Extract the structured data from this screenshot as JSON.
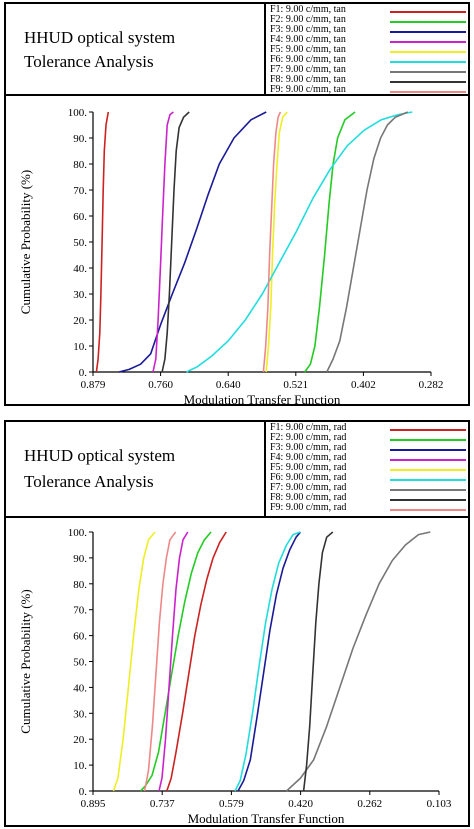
{
  "chart_data": [
    {
      "type": "line",
      "title": "HHUD optical system",
      "subtitle": "Tolerance Analysis",
      "xlabel": "Modulation Transfer Function",
      "ylabel": "Cumulative Probability (%)",
      "x_reversed": true,
      "xlim": [
        0.879,
        0.282
      ],
      "ylim": [
        0,
        100
      ],
      "x_ticks": [
        "0.879",
        "0.760",
        "0.640",
        "0.521",
        "0.402",
        "0.282"
      ],
      "y_ticks": [
        "0.",
        "10.",
        "20.",
        "30.",
        "40.",
        "50.",
        "60.",
        "70.",
        "80.",
        "90.",
        "100."
      ],
      "grid": false,
      "legend_position": "top-right",
      "series": [
        {
          "name": "F1: 9.00 c/mm, tan",
          "color": "#cc2222",
          "points": [
            [
              0.873,
              0
            ],
            [
              0.87,
              5
            ],
            [
              0.867,
              15
            ],
            [
              0.865,
              30
            ],
            [
              0.863,
              50
            ],
            [
              0.861,
              70
            ],
            [
              0.859,
              85
            ],
            [
              0.856,
              95
            ],
            [
              0.852,
              100
            ]
          ]
        },
        {
          "name": "F2: 9.00 c/mm, tan",
          "color": "#22cc22",
          "points": [
            [
              0.505,
              0
            ],
            [
              0.495,
              3
            ],
            [
              0.487,
              10
            ],
            [
              0.479,
              25
            ],
            [
              0.47,
              45
            ],
            [
              0.462,
              65
            ],
            [
              0.455,
              80
            ],
            [
              0.447,
              90
            ],
            [
              0.434,
              97
            ],
            [
              0.416,
              100
            ]
          ]
        },
        {
          "name": "F3: 9.00 c/mm, tan",
          "color": "#1a1a99",
          "points": [
            [
              0.833,
              0
            ],
            [
              0.815,
              1
            ],
            [
              0.795,
              3
            ],
            [
              0.777,
              7
            ],
            [
              0.76,
              18
            ],
            [
              0.739,
              30
            ],
            [
              0.717,
              42
            ],
            [
              0.696,
              55
            ],
            [
              0.676,
              68
            ],
            [
              0.656,
              80
            ],
            [
              0.63,
              90
            ],
            [
              0.6,
              97
            ],
            [
              0.573,
              100
            ]
          ]
        },
        {
          "name": "F4: 9.00 c/mm, tan",
          "color": "#cc22cc",
          "points": [
            [
              0.773,
              0
            ],
            [
              0.768,
              5
            ],
            [
              0.764,
              20
            ],
            [
              0.76,
              40
            ],
            [
              0.756,
              60
            ],
            [
              0.752,
              80
            ],
            [
              0.748,
              95
            ],
            [
              0.743,
              99
            ],
            [
              0.737,
              100
            ]
          ]
        },
        {
          "name": "F5: 9.00 c/mm, tan",
          "color": "#eeee22",
          "points": [
            [
              0.573,
              0
            ],
            [
              0.569,
              10
            ],
            [
              0.565,
              25
            ],
            [
              0.562,
              45
            ],
            [
              0.558,
              65
            ],
            [
              0.554,
              80
            ],
            [
              0.55,
              92
            ],
            [
              0.544,
              98
            ],
            [
              0.536,
              100
            ]
          ]
        },
        {
          "name": "F6: 9.00 c/mm, tan",
          "color": "#22dddd",
          "points": [
            [
              0.714,
              0
            ],
            [
              0.695,
              2
            ],
            [
              0.67,
              6
            ],
            [
              0.64,
              12
            ],
            [
              0.61,
              20
            ],
            [
              0.58,
              30
            ],
            [
              0.55,
              42
            ],
            [
              0.52,
              54
            ],
            [
              0.49,
              67
            ],
            [
              0.46,
              78
            ],
            [
              0.43,
              87
            ],
            [
              0.4,
              93
            ],
            [
              0.37,
              97
            ],
            [
              0.34,
              99
            ],
            [
              0.315,
              100
            ]
          ]
        },
        {
          "name": "F7: 9.00 c/mm, tan",
          "color": "#777777",
          "points": [
            [
              0.466,
              0
            ],
            [
              0.455,
              5
            ],
            [
              0.443,
              12
            ],
            [
              0.431,
              25
            ],
            [
              0.419,
              40
            ],
            [
              0.407,
              55
            ],
            [
              0.395,
              70
            ],
            [
              0.383,
              82
            ],
            [
              0.371,
              90
            ],
            [
              0.359,
              95
            ],
            [
              0.345,
              98
            ],
            [
              0.323,
              100
            ]
          ]
        },
        {
          "name": "F8: 9.00 c/mm, tan",
          "color": "#333333",
          "points": [
            [
              0.757,
              0
            ],
            [
              0.752,
              5
            ],
            [
              0.748,
              15
            ],
            [
              0.744,
              30
            ],
            [
              0.74,
              50
            ],
            [
              0.736,
              70
            ],
            [
              0.732,
              85
            ],
            [
              0.727,
              94
            ],
            [
              0.719,
              98
            ],
            [
              0.709,
              100
            ]
          ]
        },
        {
          "name": "F9: 9.00 c/mm, tan",
          "color": "#ee8888",
          "points": [
            [
              0.578,
              0
            ],
            [
              0.574,
              10
            ],
            [
              0.57,
              25
            ],
            [
              0.567,
              45
            ],
            [
              0.563,
              65
            ],
            [
              0.56,
              80
            ],
            [
              0.556,
              92
            ],
            [
              0.552,
              98
            ],
            [
              0.548,
              100
            ]
          ]
        }
      ]
    },
    {
      "type": "line",
      "title": "HHUD optical system",
      "subtitle": "Tolerance Analysis",
      "xlabel": "Modulation Transfer Function",
      "ylabel": "Cumulative Probability (%)",
      "x_reversed": true,
      "xlim": [
        0.895,
        0.103
      ],
      "ylim": [
        0,
        100
      ],
      "x_ticks": [
        "0.895",
        "0.737",
        "0.579",
        "0.420",
        "0.262",
        "0.103"
      ],
      "y_ticks": [
        "0.",
        "10.",
        "20.",
        "30.",
        "40.",
        "50.",
        "60.",
        "70.",
        "80.",
        "90.",
        "100."
      ],
      "grid": false,
      "legend_position": "top-right",
      "series": [
        {
          "name": "F1: 9.00 c/mm, rad",
          "color": "#cc2222",
          "points": [
            [
              0.726,
              0
            ],
            [
              0.716,
              5
            ],
            [
              0.705,
              15
            ],
            [
              0.69,
              30
            ],
            [
              0.676,
              45
            ],
            [
              0.662,
              60
            ],
            [
              0.648,
              72
            ],
            [
              0.634,
              82
            ],
            [
              0.62,
              90
            ],
            [
              0.605,
              96
            ],
            [
              0.59,
              100
            ]
          ]
        },
        {
          "name": "F2: 9.00 c/mm, rad",
          "color": "#22cc22",
          "points": [
            [
              0.786,
              0
            ],
            [
              0.775,
              2
            ],
            [
              0.76,
              6
            ],
            [
              0.745,
              15
            ],
            [
              0.73,
              30
            ],
            [
              0.715,
              45
            ],
            [
              0.7,
              60
            ],
            [
              0.685,
              73
            ],
            [
              0.67,
              84
            ],
            [
              0.655,
              92
            ],
            [
              0.64,
              97
            ],
            [
              0.625,
              100
            ]
          ]
        },
        {
          "name": "F3: 9.00 c/mm, rad",
          "color": "#1a1a99",
          "points": [
            [
              0.563,
              0
            ],
            [
              0.55,
              4
            ],
            [
              0.535,
              12
            ],
            [
              0.52,
              28
            ],
            [
              0.505,
              45
            ],
            [
              0.49,
              62
            ],
            [
              0.475,
              76
            ],
            [
              0.46,
              86
            ],
            [
              0.445,
              93
            ],
            [
              0.43,
              98
            ],
            [
              0.42,
              100
            ]
          ]
        },
        {
          "name": "F4: 9.00 c/mm, rad",
          "color": "#cc22cc",
          "points": [
            [
              0.744,
              0
            ],
            [
              0.737,
              5
            ],
            [
              0.729,
              20
            ],
            [
              0.721,
              40
            ],
            [
              0.713,
              60
            ],
            [
              0.705,
              78
            ],
            [
              0.697,
              90
            ],
            [
              0.689,
              97
            ],
            [
              0.678,
              100
            ]
          ]
        },
        {
          "name": "F5: 9.00 c/mm, rad",
          "color": "#eeee22",
          "points": [
            [
              0.848,
              0
            ],
            [
              0.838,
              5
            ],
            [
              0.826,
              20
            ],
            [
              0.814,
              40
            ],
            [
              0.802,
              60
            ],
            [
              0.79,
              78
            ],
            [
              0.779,
              90
            ],
            [
              0.768,
              97
            ],
            [
              0.753,
              100
            ]
          ]
        },
        {
          "name": "F6: 9.00 c/mm, rad",
          "color": "#22dddd",
          "points": [
            [
              0.57,
              0
            ],
            [
              0.558,
              4
            ],
            [
              0.545,
              14
            ],
            [
              0.53,
              30
            ],
            [
              0.515,
              48
            ],
            [
              0.5,
              65
            ],
            [
              0.485,
              78
            ],
            [
              0.47,
              88
            ],
            [
              0.452,
              95
            ],
            [
              0.437,
              99
            ],
            [
              0.42,
              100
            ]
          ]
        },
        {
          "name": "F7: 9.00 c/mm, rad",
          "color": "#777777",
          "points": [
            [
              0.452,
              0
            ],
            [
              0.42,
              5
            ],
            [
              0.39,
              12
            ],
            [
              0.36,
              25
            ],
            [
              0.33,
              40
            ],
            [
              0.3,
              55
            ],
            [
              0.27,
              68
            ],
            [
              0.24,
              80
            ],
            [
              0.21,
              89
            ],
            [
              0.18,
              95
            ],
            [
              0.15,
              99
            ],
            [
              0.123,
              100
            ]
          ]
        },
        {
          "name": "F8: 9.00 c/mm, rad",
          "color": "#333333",
          "points": [
            [
              0.413,
              0
            ],
            [
              0.406,
              10
            ],
            [
              0.399,
              25
            ],
            [
              0.392,
              45
            ],
            [
              0.385,
              65
            ],
            [
              0.378,
              80
            ],
            [
              0.37,
              92
            ],
            [
              0.36,
              98
            ],
            [
              0.346,
              100
            ]
          ]
        },
        {
          "name": "F9: 9.00 c/mm, rad",
          "color": "#ee8888",
          "points": [
            [
              0.777,
              0
            ],
            [
              0.768,
              8
            ],
            [
              0.759,
              25
            ],
            [
              0.751,
              45
            ],
            [
              0.743,
              65
            ],
            [
              0.735,
              80
            ],
            [
              0.727,
              90
            ],
            [
              0.719,
              97
            ],
            [
              0.706,
              100
            ]
          ]
        }
      ]
    }
  ]
}
